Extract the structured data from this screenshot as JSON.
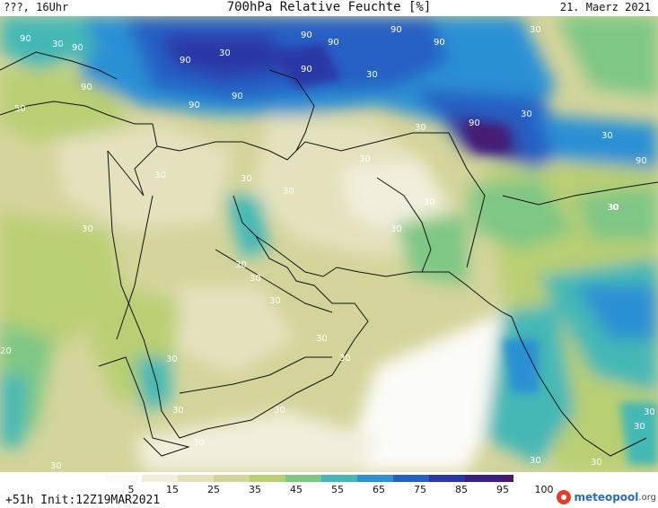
{
  "header": {
    "left": "???, 16Uhr",
    "title": "700hPa Relative Feuchte [%]",
    "date": "21. Maerz 2021"
  },
  "footer": {
    "init": "+51h  Init:12Z19MAR2021",
    "logo_name": "meteopool",
    "logo_tld": ".org"
  },
  "legend": {
    "ticks": [
      "5",
      "15",
      "25",
      "35",
      "45",
      "55",
      "65",
      "75",
      "85",
      "95",
      "100"
    ],
    "colors": [
      "#fbfbf7",
      "#f0efdc",
      "#e4e1bd",
      "#d3d49a",
      "#b9cf73",
      "#7fc785",
      "#45b8b6",
      "#2c90d4",
      "#2760c5",
      "#2a37a6",
      "#3a1f84",
      "#461a72"
    ]
  },
  "map_labels": [
    "90",
    "90",
    "90",
    "90",
    "90",
    "90",
    "90",
    "90",
    "90",
    "90",
    "90",
    "90",
    "90",
    "30",
    "30",
    "30",
    "30",
    "30",
    "30",
    "30",
    "30",
    "30",
    "30",
    "30",
    "30",
    "30",
    "30",
    "30",
    "30",
    "30",
    "30",
    "30",
    "30",
    "30",
    "30",
    "30",
    "30",
    "30",
    "30",
    "30",
    "30",
    "30",
    "30",
    "50",
    "20"
  ]
}
